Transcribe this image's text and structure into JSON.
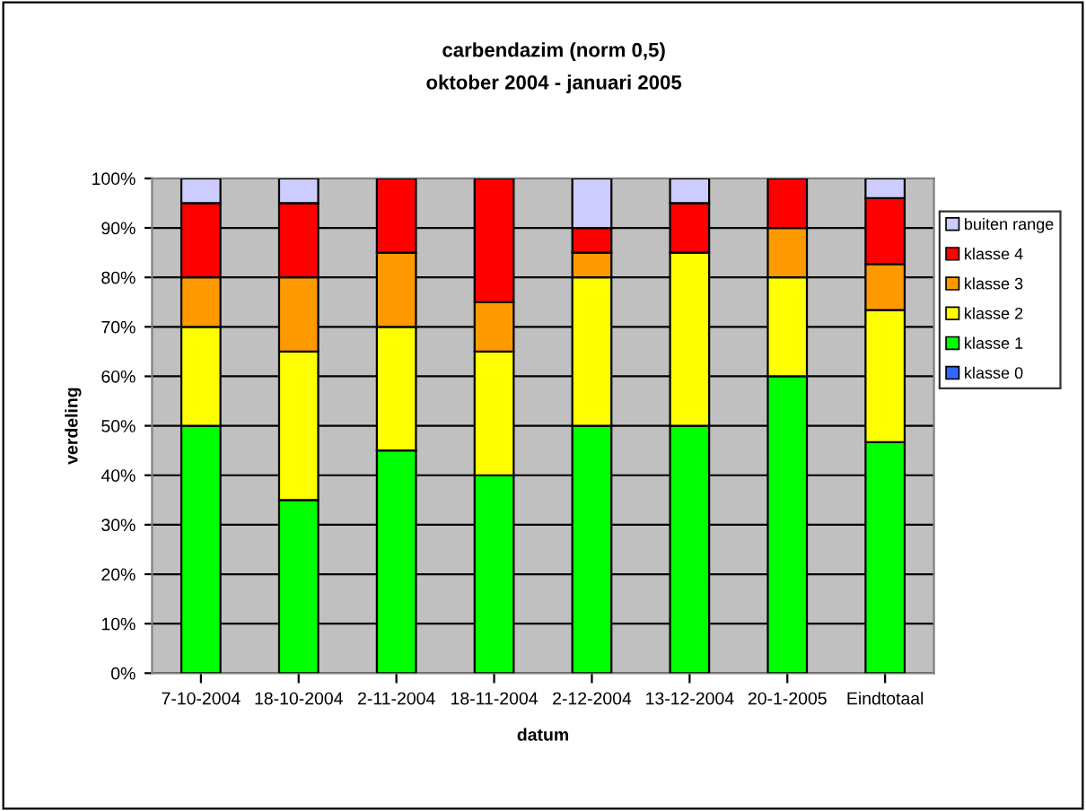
{
  "chart_data": {
    "type": "bar",
    "title": "carbendazim (norm 0,5)",
    "subtitle": "oktober 2004 - januari 2005",
    "xlabel": "datum",
    "ylabel": "verdeling",
    "categories": [
      "7-10-2004",
      "18-10-2004",
      "2-11-2004",
      "18-11-2004",
      "2-12-2004",
      "13-12-2004",
      "20-1-2005",
      "Eindtotaal"
    ],
    "stacked": true,
    "grid": "y",
    "legend": "right",
    "ylim": [
      0,
      100
    ],
    "yticks": [
      {
        "value": 0,
        "label": "0%"
      },
      {
        "value": 10,
        "label": "10%"
      },
      {
        "value": 20,
        "label": "20%"
      },
      {
        "value": 30,
        "label": "30%"
      },
      {
        "value": 40,
        "label": "40%"
      },
      {
        "value": 50,
        "label": "50%"
      },
      {
        "value": 60,
        "label": "60%"
      },
      {
        "value": 70,
        "label": "70%"
      },
      {
        "value": 80,
        "label": "80%"
      },
      {
        "value": 90,
        "label": "90%"
      },
      {
        "value": 100,
        "label": "100%"
      }
    ],
    "series": [
      {
        "name": "klasse 0",
        "color": "#3366ff",
        "values": [
          0,
          0,
          0,
          0,
          0,
          0,
          0,
          0
        ]
      },
      {
        "name": "klasse 1",
        "color": "#00ff00",
        "values": [
          50,
          35,
          45,
          40,
          50,
          50,
          60,
          46.7
        ]
      },
      {
        "name": "klasse 2",
        "color": "#ffff00",
        "values": [
          20,
          30,
          25,
          25,
          30,
          35,
          20,
          26.7
        ]
      },
      {
        "name": "klasse 3",
        "color": "#ff9900",
        "values": [
          10,
          15,
          15,
          10,
          5,
          0,
          10,
          9.3
        ]
      },
      {
        "name": "klasse 4",
        "color": "#ff0000",
        "values": [
          15,
          15,
          15,
          25,
          5,
          10,
          10,
          13.3
        ]
      },
      {
        "name": "buiten range",
        "color": "#ccccff",
        "values": [
          5,
          5,
          0,
          0,
          10,
          5,
          0,
          4
        ]
      }
    ]
  }
}
